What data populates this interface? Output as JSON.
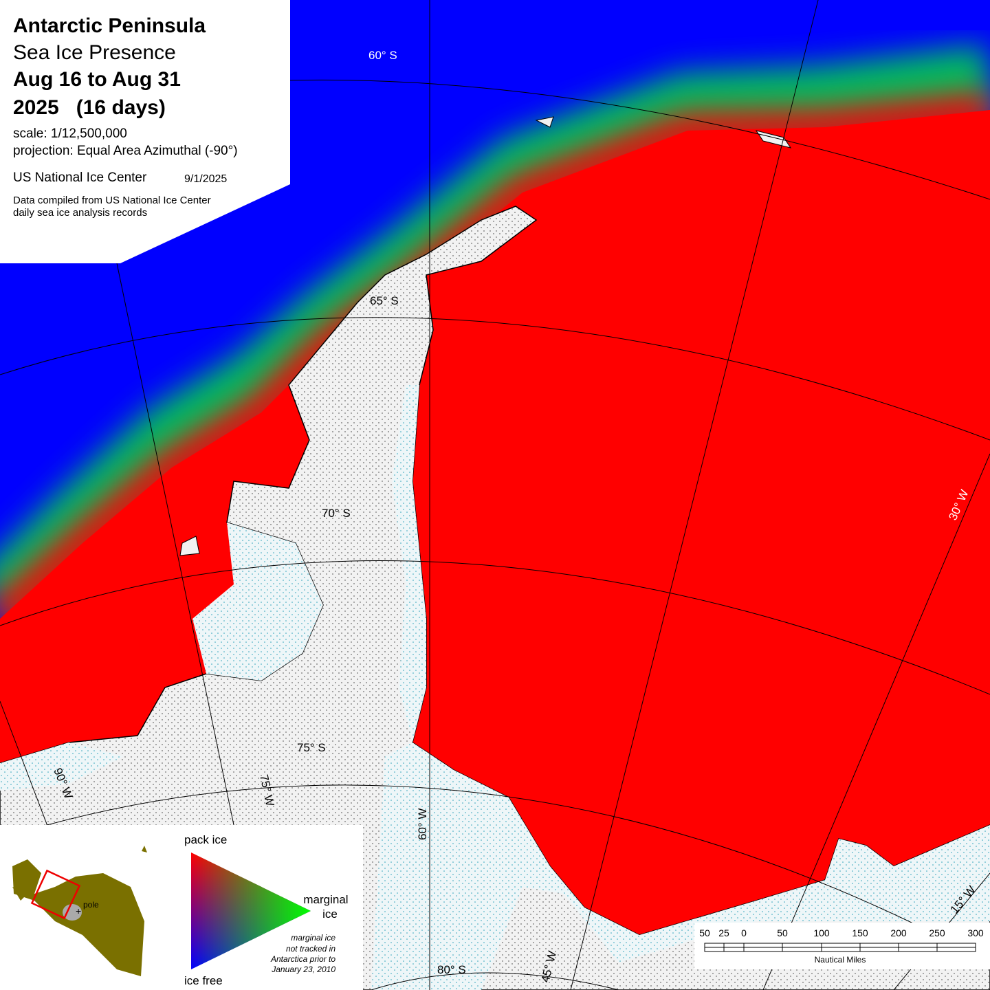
{
  "header": {
    "title": "Antarctic Peninsula",
    "subtitle": "Sea Ice Presence",
    "period": "Aug 16 to Aug 31",
    "year": "2025   (16 days)",
    "scale": "scale: 1/12,500,000",
    "projection": "projection: Equal Area Azimuthal (-90°)",
    "agency": "US National Ice Center",
    "date": "9/1/2025",
    "source": [
      "Data compiled from US National Ice Center",
      "daily sea ice analysis records"
    ]
  },
  "graticule": {
    "latitudes": [
      "60° S",
      "65° S",
      "70° S",
      "75° S",
      "80° S"
    ],
    "longitudes": [
      "90° W",
      "75° W",
      "60° W",
      "45° W",
      "30° W",
      "15° W"
    ]
  },
  "legend": {
    "top": "pack ice",
    "right": [
      "marginal",
      "ice"
    ],
    "bottom": "ice free",
    "note": [
      "marginal ice",
      "not tracked in",
      "Antarctica prior to",
      "January 23, 2010"
    ],
    "inset_label": "pole"
  },
  "scale_bar": {
    "labels": [
      50,
      25,
      0,
      50,
      100,
      150,
      200,
      250,
      300
    ],
    "unit": "Nautical Miles"
  }
}
